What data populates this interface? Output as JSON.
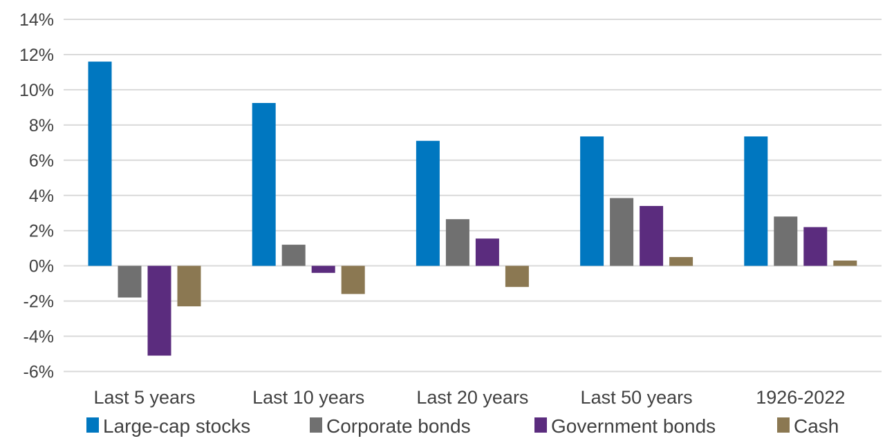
{
  "chart_data": {
    "type": "bar",
    "categories": [
      "Last 5 years",
      "Last 10 years",
      "Last 20 years",
      "Last 50 years",
      "1926-2022"
    ],
    "series": [
      {
        "name": "Large-cap stocks",
        "color": "#0077C0",
        "values": [
          11.6,
          9.25,
          7.1,
          7.35,
          7.35
        ]
      },
      {
        "name": "Corporate bonds",
        "color": "#707070",
        "values": [
          -1.8,
          1.2,
          2.65,
          3.85,
          2.8
        ]
      },
      {
        "name": "Government bonds",
        "color": "#5B2C7E",
        "values": [
          -5.1,
          -0.4,
          1.55,
          3.4,
          2.2
        ]
      },
      {
        "name": "Cash",
        "color": "#8B7852",
        "values": [
          -2.3,
          -1.6,
          -1.2,
          0.5,
          0.3
        ]
      }
    ],
    "ylim": [
      -6,
      14
    ],
    "yticks": [
      "14%",
      "12%",
      "10%",
      "8%",
      "6%",
      "4%",
      "2%",
      "0%",
      "-2%",
      "-4%",
      "-6%"
    ],
    "ytick_values": [
      14,
      12,
      10,
      8,
      6,
      4,
      2,
      0,
      -2,
      -4,
      -6
    ],
    "grid": true,
    "legend_position": "bottom"
  }
}
